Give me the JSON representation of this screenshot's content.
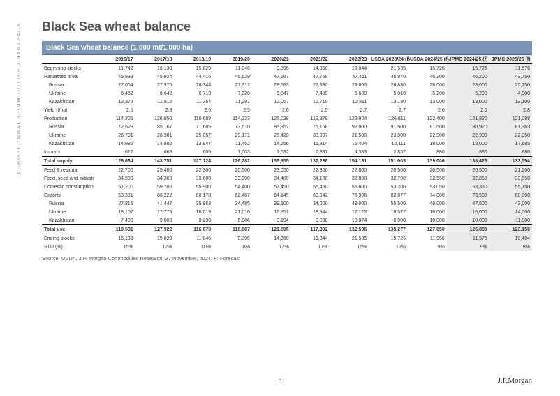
{
  "sidebar": "AGRICULTURAL COMMODITIES CHARTPACK",
  "title": "Black Sea wheat balance",
  "banner": "Black Sea wheat balance (1,000 mt/1,000 ha)",
  "columns": [
    "",
    "2016/17",
    "2017/18",
    "2018/19",
    "2019/20",
    "2020/21",
    "2021/22",
    "2022/23",
    "USDA 2023/24 (f)",
    "USDA 2024/25 (f)",
    "JPMC 2024/25 (f)",
    "JPMC 2025/26 (f)"
  ],
  "forecast_cols": [
    10,
    11
  ],
  "rows": [
    {
      "label": "Beginning stocks",
      "cells": [
        "11,742",
        "16,133",
        "15,829",
        "11,046",
        "9,395",
        "14,360",
        "19,844",
        "21,535",
        "15,726",
        "15,726",
        "11,576"
      ]
    },
    {
      "label": "Harvested area",
      "cells": [
        "45,839",
        "45,924",
        "44,416",
        "45,629",
        "47,587",
        "47,758",
        "47,411",
        "46,970",
        "46,200",
        "46,200",
        "43,750"
      ]
    },
    {
      "label": "Russia",
      "indent": true,
      "cells": [
        "27,004",
        "27,370",
        "26,344",
        "27,312",
        "28,683",
        "27,930",
        "29,000",
        "28,830",
        "28,000",
        "28,000",
        "25,750"
      ]
    },
    {
      "label": "Ukraine",
      "indent": true,
      "cells": [
        "6,462",
        "6,642",
        "6,718",
        "7,020",
        "6,847",
        "7,409",
        "5,600",
        "5,010",
        "5,200",
        "5,200",
        "4,900"
      ]
    },
    {
      "label": "Kazakhstan",
      "indent": true,
      "cells": [
        "12,373",
        "11,912",
        "11,354",
        "11,297",
        "12,057",
        "12,719",
        "12,811",
        "13,130",
        "13,000",
        "13,000",
        "13,100"
      ]
    },
    {
      "label": "Yield (t/ha)",
      "cells": [
        "2.5",
        "2.8",
        "2.5",
        "2.5",
        "2.6",
        "2.5",
        "2.7",
        "2.7",
        "2.6",
        "2.6",
        "2.8"
      ]
    },
    {
      "label": "Production",
      "cells": [
        "114,305",
        "126,950",
        "110,689",
        "114,233",
        "125,028",
        "119,979",
        "129,904",
        "126,611",
        "122,400",
        "121,820",
        "121,098"
      ]
    },
    {
      "label": "Russia",
      "indent": true,
      "cells": [
        "72,529",
        "85,167",
        "71,685",
        "73,610",
        "85,352",
        "75,158",
        "92,000",
        "91,500",
        "81,500",
        "80,920",
        "81,363"
      ]
    },
    {
      "label": "Ukraine",
      "indent": true,
      "cells": [
        "26,791",
        "26,981",
        "25,057",
        "29,171",
        "25,420",
        "33,007",
        "21,500",
        "23,000",
        "22,900",
        "22,900",
        "22,050"
      ]
    },
    {
      "label": "Kazakhstan",
      "indent": true,
      "cells": [
        "14,985",
        "14,802",
        "13,947",
        "11,452",
        "14,256",
        "11,814",
        "16,404",
        "12,111",
        "18,000",
        "18,000",
        "17,685"
      ]
    },
    {
      "label": "Imports",
      "cells": [
        "617",
        "668",
        "606",
        "1,003",
        "1,532",
        "2,897",
        "4,383",
        "2,857",
        "880",
        "880",
        "880"
      ]
    },
    {
      "label": "Total supply",
      "bold": true,
      "cells": [
        "126,664",
        "143,751",
        "127,124",
        "126,282",
        "135,955",
        "137,236",
        "154,131",
        "151,003",
        "139,006",
        "138,426",
        "133,554"
      ]
    },
    {
      "label": "Feed & residual",
      "cells": [
        "22,700",
        "25,400",
        "22,300",
        "20,500",
        "23,050",
        "22,350",
        "22,800",
        "20,500",
        "20,500",
        "20,500",
        "21,200"
      ]
    },
    {
      "label": "Food, seed and industr",
      "cells": [
        "34,500",
        "34,300",
        "33,600",
        "33,900",
        "34,400",
        "34,100",
        "32,800",
        "32,700",
        "32,550",
        "32,850",
        "33,950"
      ]
    },
    {
      "label": "Domestic consumption",
      "cells": [
        "57,200",
        "59,700",
        "55,900",
        "54,400",
        "57,450",
        "56,450",
        "55,600",
        "53,200",
        "53,050",
        "53,350",
        "55,150"
      ]
    },
    {
      "label": "Exports",
      "cells": [
        "53,331",
        "68,222",
        "60,178",
        "62,487",
        "64,145",
        "60,942",
        "76,996",
        "82,077",
        "74,000",
        "73,500",
        "68,000"
      ]
    },
    {
      "label": "Russia",
      "indent": true,
      "cells": [
        "27,815",
        "41,447",
        "35,863",
        "34,485",
        "39,100",
        "34,000",
        "49,000",
        "55,500",
        "48,000",
        "47,500",
        "43,000"
      ]
    },
    {
      "label": "Ukraine",
      "indent": true,
      "cells": [
        "18,107",
        "17,775",
        "16,019",
        "21,016",
        "16,851",
        "18,844",
        "17,122",
        "18,577",
        "16,000",
        "16,000",
        "14,000"
      ]
    },
    {
      "label": "Kazakhstan",
      "indent": true,
      "cells": [
        "7,409",
        "9,000",
        "8,296",
        "6,986",
        "8,194",
        "8,098",
        "10,874",
        "8,000",
        "10,000",
        "10,000",
        "11,000"
      ]
    },
    {
      "label": "Total use",
      "bold": true,
      "cells": [
        "110,531",
        "127,922",
        "116,078",
        "116,887",
        "121,595",
        "117,392",
        "132,596",
        "135,277",
        "127,050",
        "126,850",
        "123,150"
      ]
    },
    {
      "label": "Ending stocks",
      "cells": [
        "16,133",
        "15,829",
        "11,046",
        "9,395",
        "14,360",
        "19,844",
        "21,535",
        "15,726",
        "11,956",
        "11,576",
        "10,404"
      ]
    },
    {
      "label": "STU (%)",
      "cells": [
        "15%",
        "12%",
        "10%",
        "8%",
        "12%",
        "17%",
        "16%",
        "12%",
        "9%",
        "9%",
        "8%"
      ]
    }
  ],
  "source": "Source: USDA, J.P. Morgan Commodities Research, 27 November, 2024. F: Forecast",
  "page_number": "6",
  "logo": "J.P.Morgan"
}
